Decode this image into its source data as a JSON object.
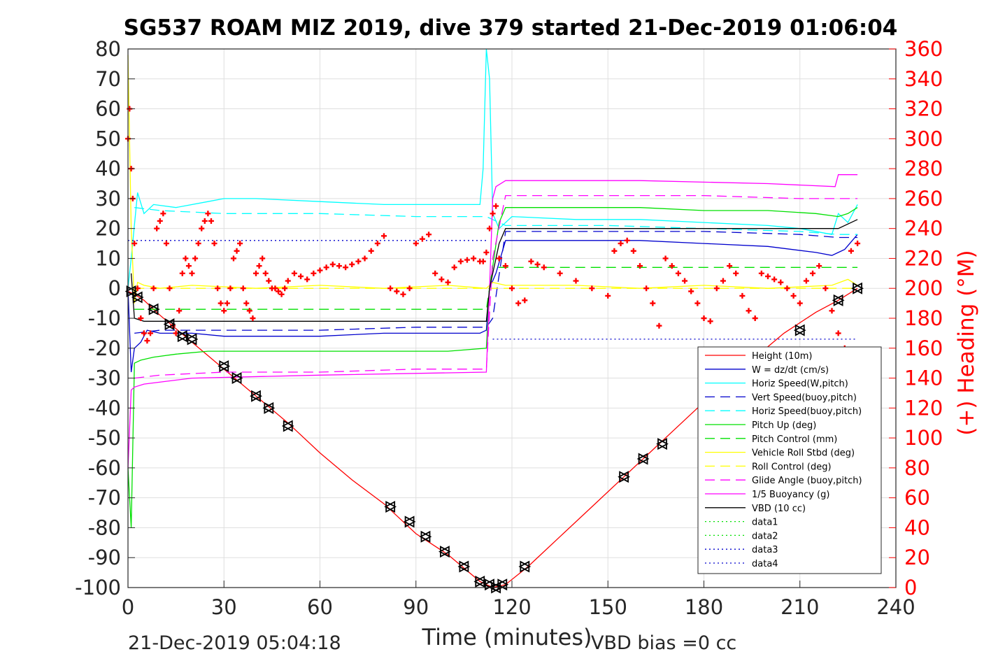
{
  "chart_data": {
    "type": "line",
    "title": "SG537 ROAM MIZ 2019, dive 379 started 21-Dec-2019 01:06:04",
    "xlabel": "Time (minutes)",
    "ylabel": "",
    "ylabel_right": "(+) Heading (°M)",
    "xlim": [
      0,
      240
    ],
    "ylim": [
      -100,
      80
    ],
    "ylim_right": [
      0,
      360
    ],
    "x_ticks": [
      0,
      30,
      60,
      90,
      120,
      150,
      180,
      210,
      240
    ],
    "y_ticks": [
      80,
      70,
      60,
      50,
      40,
      30,
      20,
      10,
      0,
      -10,
      -20,
      -30,
      -40,
      -50,
      -60,
      -70,
      -80,
      -90,
      -100
    ],
    "y_ticks_right": [
      360,
      340,
      320,
      300,
      280,
      260,
      240,
      220,
      200,
      180,
      160,
      140,
      120,
      100,
      80,
      60,
      40,
      20,
      0
    ],
    "grid": true,
    "legend_position": "bottom-right",
    "footer_left": "21-Dec-2019 05:04:18",
    "footer_right": "VBD bias =0 cc",
    "colors": {
      "height": "#ff0000",
      "w": "#0000cd",
      "horiz_speed": "#00ffff",
      "pitch": "#00e000",
      "roll": "#ffff00",
      "glide": "#ff00ff",
      "vbd": "#000000",
      "heading": "#ff0000"
    },
    "series": [
      {
        "name": "Height (10m)",
        "color": "#ff0000",
        "dash": "",
        "x": [
          0,
          2,
          5,
          10,
          20,
          30,
          40,
          50,
          60,
          70,
          80,
          90,
          100,
          110,
          114,
          118,
          125,
          135,
          145,
          155,
          165,
          175,
          185,
          195,
          205,
          215,
          222,
          228
        ],
        "y": [
          -1,
          -2,
          -4,
          -9,
          -18,
          -27,
          -36,
          -45,
          -55,
          -64,
          -72,
          -82,
          -89,
          -98,
          -100,
          -99,
          -93,
          -83,
          -73,
          -63,
          -53,
          -43,
          -33,
          -24,
          -15,
          -8,
          -4,
          0
        ]
      },
      {
        "name": "W = dz/dt (cm/s)",
        "color": "#0000cd",
        "dash": "",
        "x": [
          0,
          1,
          2,
          4,
          6,
          10,
          20,
          30,
          40,
          50,
          60,
          70,
          80,
          90,
          100,
          110,
          112,
          113,
          115,
          118,
          125,
          140,
          160,
          180,
          200,
          215,
          220,
          222,
          224,
          228
        ],
        "y": [
          0,
          -28,
          -20,
          -18,
          -14,
          -15,
          -15,
          -16,
          -16,
          -16,
          -16,
          -15.5,
          -15,
          -15,
          -15,
          -15,
          -14,
          0,
          5,
          16,
          16,
          16,
          16,
          15,
          14,
          12,
          11,
          12,
          13,
          18
        ]
      },
      {
        "name": "Horiz Speed(W,pitch)",
        "color": "#00ffff",
        "dash": "",
        "x": [
          0,
          1,
          3,
          5,
          8,
          15,
          25,
          30,
          40,
          60,
          80,
          100,
          110,
          111,
          112,
          113,
          114,
          116,
          120,
          140,
          160,
          180,
          200,
          210,
          220,
          222,
          225,
          228
        ],
        "y": [
          0,
          10,
          32,
          25,
          28,
          27,
          29,
          30,
          30,
          29,
          28,
          28,
          28,
          40,
          85,
          70,
          25,
          20,
          24,
          23,
          23,
          22,
          21,
          20,
          18,
          25,
          22,
          28
        ]
      },
      {
        "name": "Vert Speed(buoy,pitch)",
        "color": "#0000cd",
        "dash": "14,8",
        "x": [
          2,
          10,
          30,
          60,
          90,
          112,
          114,
          118,
          150,
          180,
          210,
          222,
          228
        ],
        "y": [
          -15,
          -14,
          -14,
          -14,
          -13,
          -13,
          -10,
          19,
          19,
          19,
          18,
          17,
          17
        ]
      },
      {
        "name": "Horiz Speed(buoy,pitch)",
        "color": "#00ffff",
        "dash": "14,8",
        "x": [
          2,
          10,
          30,
          60,
          90,
          112,
          114,
          118,
          150,
          180,
          210,
          222,
          228
        ],
        "y": [
          27,
          26,
          25,
          25,
          24,
          24,
          23,
          21,
          21,
          20,
          19,
          18,
          18
        ]
      },
      {
        "name": "Pitch Up (deg)",
        "color": "#00e000",
        "dash": "",
        "x": [
          0,
          1,
          2,
          4,
          8,
          15,
          25,
          40,
          60,
          80,
          100,
          112,
          113,
          116,
          118,
          125,
          140,
          160,
          180,
          200,
          215,
          222,
          225,
          228
        ],
        "y": [
          -60,
          -80,
          -25,
          -24,
          -23,
          -22,
          -21,
          -21,
          -21,
          -21,
          -21,
          -20,
          0,
          22,
          27,
          27,
          27,
          27,
          26,
          26,
          25,
          24,
          25,
          27
        ]
      },
      {
        "name": "Pitch Control (mm)",
        "color": "#00e000",
        "dash": "14,8",
        "x": [
          2,
          112,
          114,
          228
        ],
        "y": [
          -7,
          -7,
          7,
          7
        ]
      },
      {
        "name": "Vehicle Roll Stbd (deg)",
        "color": "#ffff00",
        "dash": "",
        "x": [
          0,
          1,
          2,
          3,
          5,
          10,
          20,
          40,
          60,
          80,
          100,
          112,
          114,
          118,
          140,
          160,
          180,
          200,
          220,
          225,
          228
        ],
        "y": [
          78,
          20,
          -5,
          2,
          1,
          0,
          1,
          0,
          1,
          0,
          1,
          0,
          2,
          1,
          1,
          0,
          1,
          0,
          1,
          3,
          1
        ]
      },
      {
        "name": "Roll Control (deg)",
        "color": "#ffff00",
        "dash": "14,8",
        "x": [
          2,
          228
        ],
        "y": [
          0,
          0
        ]
      },
      {
        "name": "Glide Angle (buoy,pitch)",
        "color": "#ff00ff",
        "dash": "14,8",
        "x": [
          2,
          10,
          30,
          60,
          90,
          112,
          114,
          118,
          150,
          180,
          210,
          222,
          228
        ],
        "y": [
          -30,
          -29,
          -28,
          -28,
          -27,
          -27,
          10,
          31,
          31,
          31,
          30,
          30,
          30
        ]
      },
      {
        "name": "1/5 Buoyancy (g)",
        "color": "#ff00ff",
        "dash": "",
        "x": [
          0,
          1,
          2,
          5,
          20,
          60,
          112,
          113,
          114,
          115,
          118,
          160,
          200,
          221,
          222,
          228
        ],
        "y": [
          -60,
          -34,
          -33,
          -32,
          -30,
          -29,
          -28,
          0,
          30,
          34,
          36,
          36,
          35,
          34,
          38,
          38
        ]
      },
      {
        "name": "VBD (10 cc)",
        "color": "#000000",
        "dash": "",
        "x": [
          1,
          2,
          5,
          112,
          113,
          116,
          118,
          222,
          228
        ],
        "y": [
          5,
          -10,
          -11,
          -11,
          0,
          15,
          20,
          20,
          23
        ]
      },
      {
        "name": "data1",
        "color": "#00e000",
        "dash": "2,4",
        "x": [],
        "y": []
      },
      {
        "name": "data2",
        "color": "#00e000",
        "dash": "2,4",
        "x": [],
        "y": []
      },
      {
        "name": "data3",
        "color": "#0000cd",
        "dash": "2,4",
        "x": [
          0,
          112
        ],
        "y": [
          16,
          16
        ]
      },
      {
        "name": "data4",
        "color": "#0000cd",
        "dash": "2,4",
        "x": [
          114,
          228
        ],
        "y": [
          -17,
          -17
        ]
      }
    ],
    "heading_points": {
      "color": "#ff0000",
      "x": [
        0,
        0.5,
        1,
        1.5,
        2,
        3,
        4,
        5,
        6,
        7,
        8,
        9,
        10,
        11,
        12,
        13,
        14,
        15,
        16,
        17,
        18,
        19,
        20,
        21,
        22,
        23,
        24,
        25,
        26,
        27,
        28,
        29,
        30,
        31,
        32,
        33,
        34,
        35,
        36,
        37,
        38,
        39,
        40,
        41,
        42,
        43,
        44,
        45,
        46,
        47,
        48,
        49,
        50,
        52,
        54,
        56,
        58,
        60,
        62,
        64,
        66,
        68,
        70,
        72,
        74,
        76,
        78,
        80,
        82,
        84,
        86,
        88,
        90,
        92,
        94,
        96,
        98,
        100,
        102,
        104,
        106,
        108,
        110,
        111,
        112,
        113,
        114,
        115,
        116,
        118,
        120,
        122,
        124,
        126,
        128,
        130,
        135,
        140,
        145,
        150,
        152,
        154,
        156,
        158,
        160,
        162,
        164,
        166,
        168,
        170,
        172,
        174,
        176,
        178,
        180,
        182,
        184,
        186,
        188,
        190,
        192,
        194,
        196,
        198,
        200,
        202,
        204,
        206,
        208,
        210,
        212,
        214,
        216,
        218,
        220,
        222,
        224,
        226,
        228
      ],
      "y": [
        300,
        320,
        280,
        260,
        230,
        200,
        180,
        170,
        165,
        170,
        200,
        240,
        245,
        250,
        230,
        200,
        175,
        170,
        185,
        210,
        220,
        215,
        210,
        220,
        230,
        240,
        245,
        250,
        245,
        230,
        200,
        190,
        185,
        190,
        200,
        220,
        225,
        230,
        200,
        190,
        185,
        180,
        210,
        215,
        220,
        210,
        205,
        200,
        200,
        198,
        196,
        200,
        205,
        210,
        208,
        206,
        210,
        212,
        214,
        216,
        215,
        214,
        216,
        218,
        220,
        225,
        230,
        235,
        200,
        198,
        196,
        200,
        230,
        233,
        236,
        210,
        206,
        204,
        214,
        218,
        219,
        220,
        218,
        218,
        224,
        240,
        250,
        255,
        220,
        215,
        200,
        190,
        192,
        218,
        216,
        214,
        210,
        205,
        200,
        195,
        225,
        230,
        232,
        225,
        215,
        200,
        190,
        175,
        220,
        215,
        210,
        205,
        198,
        190,
        180,
        178,
        200,
        205,
        215,
        210,
        195,
        185,
        180,
        210,
        208,
        206,
        204,
        200,
        195,
        190,
        205,
        210,
        215,
        200,
        185,
        170,
        160,
        225,
        230
      ]
    },
    "markers": {
      "color": "#000000",
      "x": [
        1,
        3,
        8,
        13,
        17,
        20,
        30,
        34,
        40,
        44,
        50,
        82,
        88,
        93,
        99,
        105,
        110,
        113,
        115,
        117,
        124,
        155,
        161,
        167,
        210,
        222,
        228
      ],
      "y": [
        -1,
        -3,
        -7,
        -12,
        -16,
        -17,
        -26,
        -30,
        -36,
        -40,
        -46,
        -73,
        -78,
        -83,
        -88,
        -93,
        -98,
        -99,
        -100,
        -99,
        -93,
        -63,
        -57,
        -52,
        -14,
        -4,
        0
      ]
    }
  }
}
